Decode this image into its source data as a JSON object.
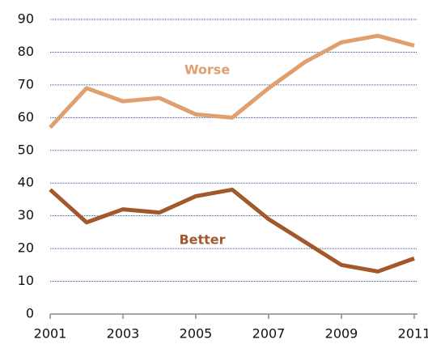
{
  "chart_data": {
    "type": "line",
    "x": [
      2001,
      2002,
      2003,
      2004,
      2005,
      2006,
      2007,
      2008,
      2009,
      2010,
      2011
    ],
    "series": [
      {
        "name": "Worse",
        "color": "#df9f6e",
        "values": [
          57,
          69,
          65,
          66,
          61,
          60,
          69,
          77,
          83,
          85,
          82
        ]
      },
      {
        "name": "Better",
        "color": "#a3582c",
        "values": [
          38,
          28,
          32,
          31,
          36,
          38,
          29,
          22,
          15,
          13,
          17
        ]
      }
    ],
    "xlim": [
      2001,
      2011
    ],
    "xticks": [
      2001,
      2003,
      2005,
      2007,
      2009,
      2011
    ],
    "ylim": [
      0,
      90
    ],
    "yticks": [
      0,
      10,
      20,
      30,
      40,
      50,
      60,
      70,
      80,
      90
    ],
    "grid": true
  }
}
